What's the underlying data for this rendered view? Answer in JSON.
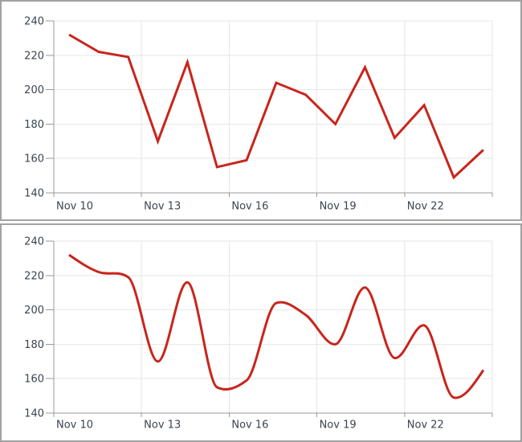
{
  "chart_data": [
    {
      "type": "line",
      "title": "",
      "categories": [
        "Nov 10",
        "Nov 11",
        "Nov 12",
        "Nov 13",
        "Nov 14",
        "Nov 15",
        "Nov 16",
        "Nov 17",
        "Nov 18",
        "Nov 19",
        "Nov 20",
        "Nov 21",
        "Nov 22",
        "Nov 23",
        "Nov 24"
      ],
      "values": [
        232,
        222,
        219,
        170,
        216,
        155,
        159,
        204,
        197,
        180,
        213,
        172,
        191,
        149,
        165
      ],
      "xtick_labels": [
        "Nov 10",
        "Nov 13",
        "Nov 16",
        "Nov 19",
        "Nov 22"
      ],
      "ytick_labels": [
        "140",
        "160",
        "180",
        "200",
        "220",
        "240"
      ],
      "ylim": [
        140,
        240
      ],
      "ytick_step": 20,
      "grid": true,
      "legend": "none",
      "line_color": "#c8251c"
    },
    {
      "type": "spline",
      "title": "",
      "categories": [
        "Nov 10",
        "Nov 11",
        "Nov 12",
        "Nov 13",
        "Nov 14",
        "Nov 15",
        "Nov 16",
        "Nov 17",
        "Nov 18",
        "Nov 19",
        "Nov 20",
        "Nov 21",
        "Nov 22",
        "Nov 23",
        "Nov 24"
      ],
      "values": [
        232,
        222,
        219,
        170,
        216,
        155,
        159,
        204,
        197,
        180,
        213,
        172,
        191,
        149,
        165
      ],
      "xtick_labels": [
        "Nov 10",
        "Nov 13",
        "Nov 16",
        "Nov 19",
        "Nov 22"
      ],
      "ytick_labels": [
        "140",
        "160",
        "180",
        "200",
        "220",
        "240"
      ],
      "ylim": [
        140,
        240
      ],
      "ytick_step": 20,
      "grid": true,
      "legend": "none",
      "line_color": "#c8251c"
    }
  ],
  "style": {
    "grid_color": "#e6e6e6",
    "axis_color": "#999999",
    "tick_color": "#999999",
    "label_color": "#3a4450",
    "panel_border_color": "#a2a2a2",
    "background": "#ffffff"
  }
}
